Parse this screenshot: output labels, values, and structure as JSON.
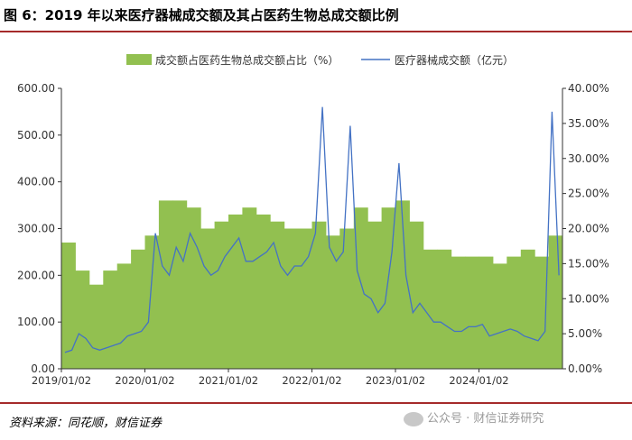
{
  "figure": {
    "title": "图 6：2019 年以来医疗器械成交额及其占医药生物总成交额比例",
    "source": "资料来源：同花顺，财信证券",
    "watermark": "公众号 · 财信证券研究"
  },
  "chart_data": {
    "type": "bar+line",
    "title": "",
    "xlabel": "",
    "ylabel": "",
    "legend_position": "top-center",
    "grid": false,
    "x_ticks": [
      "2019/01/02",
      "2020/01/02",
      "2021/01/02",
      "2022/01/02",
      "2023/01/02",
      "2024/01/02"
    ],
    "y_left": {
      "min": 0,
      "max": 600,
      "ticks": [
        "0.00",
        "100.00",
        "200.00",
        "300.00",
        "400.00",
        "500.00",
        "600.00"
      ]
    },
    "y_right": {
      "min": 0,
      "max": 40,
      "ticks": [
        "0.00%",
        "5.00%",
        "10.00%",
        "15.00%",
        "20.00%",
        "25.00%",
        "30.00%",
        "35.00%",
        "40.00%"
      ]
    },
    "series": [
      {
        "name": "成交额占医药生物总成交额占比（%）",
        "type": "bar",
        "axis": "right",
        "color": "#92c050",
        "x": [
          "2019/01",
          "2019/03",
          "2019/05",
          "2019/07",
          "2019/09",
          "2019/11",
          "2020/01",
          "2020/03",
          "2020/05",
          "2020/07",
          "2020/09",
          "2020/11",
          "2021/01",
          "2021/03",
          "2021/05",
          "2021/07",
          "2021/09",
          "2021/11",
          "2022/01",
          "2022/03",
          "2022/05",
          "2022/07",
          "2022/09",
          "2022/11",
          "2023/01",
          "2023/03",
          "2023/05",
          "2023/07",
          "2023/09",
          "2023/11",
          "2024/01",
          "2024/03",
          "2024/05",
          "2024/07",
          "2024/09",
          "2024/11"
        ],
        "values": [
          18,
          14,
          12,
          14,
          15,
          17,
          19,
          24,
          24,
          23,
          20,
          21,
          22,
          23,
          22,
          21,
          20,
          20,
          21,
          19,
          20,
          23,
          21,
          23,
          24,
          21,
          17,
          17,
          16,
          16,
          16,
          15,
          16,
          17,
          16,
          19
        ]
      },
      {
        "name": "医疗器械成交额（亿元）",
        "type": "line",
        "axis": "left",
        "color": "#4472c4",
        "x": [
          "2019/01",
          "2019/02",
          "2019/03",
          "2019/04",
          "2019/05",
          "2019/06",
          "2019/07",
          "2019/08",
          "2019/09",
          "2019/10",
          "2019/11",
          "2019/12",
          "2020/01",
          "2020/02",
          "2020/03",
          "2020/04",
          "2020/05",
          "2020/06",
          "2020/07",
          "2020/08",
          "2020/09",
          "2020/10",
          "2020/11",
          "2020/12",
          "2021/01",
          "2021/02",
          "2021/03",
          "2021/04",
          "2021/05",
          "2021/06",
          "2021/07",
          "2021/08",
          "2021/09",
          "2021/10",
          "2021/11",
          "2021/12",
          "2022/01",
          "2022/02",
          "2022/03",
          "2022/04",
          "2022/05",
          "2022/06",
          "2022/07",
          "2022/08",
          "2022/09",
          "2022/10",
          "2022/11",
          "2022/12",
          "2023/01",
          "2023/02",
          "2023/03",
          "2023/04",
          "2023/05",
          "2023/06",
          "2023/07",
          "2023/08",
          "2023/09",
          "2023/10",
          "2023/11",
          "2023/12",
          "2024/01",
          "2024/02",
          "2024/03",
          "2024/04",
          "2024/05",
          "2024/06",
          "2024/07",
          "2024/08",
          "2024/09",
          "2024/10",
          "2024/11",
          "2024/12"
        ],
        "values": [
          35,
          40,
          75,
          65,
          45,
          40,
          45,
          50,
          55,
          70,
          75,
          80,
          100,
          290,
          220,
          200,
          260,
          230,
          290,
          260,
          220,
          200,
          210,
          240,
          260,
          280,
          230,
          230,
          240,
          250,
          270,
          220,
          200,
          220,
          220,
          240,
          290,
          560,
          260,
          230,
          250,
          520,
          210,
          160,
          150,
          120,
          140,
          250,
          440,
          200,
          120,
          140,
          120,
          100,
          100,
          90,
          80,
          80,
          90,
          90,
          95,
          70,
          75,
          80,
          85,
          80,
          70,
          65,
          60,
          80,
          550,
          200
        ]
      }
    ]
  }
}
